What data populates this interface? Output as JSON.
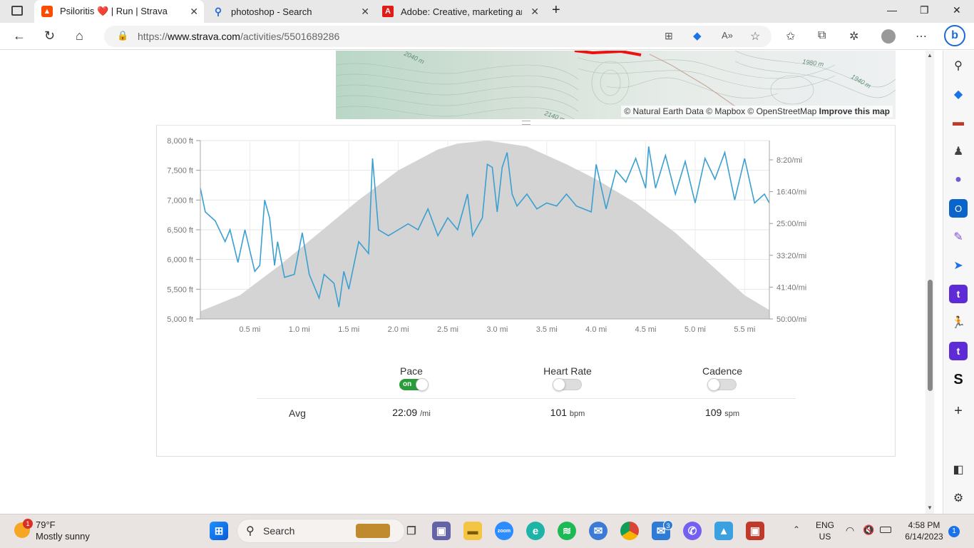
{
  "browser": {
    "tabs": [
      {
        "title": "Psiloritis ❤️ | Run | Strava",
        "active": true,
        "icon": "strava-icon"
      },
      {
        "title": "photoshop - Search",
        "active": false,
        "icon": "search-icon"
      },
      {
        "title": "Adobe: Creative, marketing and d",
        "active": false,
        "icon": "adobe-icon"
      }
    ],
    "url_prefix": "https://",
    "url_host": "www.strava.com",
    "url_path": "/activities/5501689286"
  },
  "map": {
    "attribution_prefix": "© Natural Earth Data © Mapbox © OpenStreetMap",
    "improve_link": "Improve this map",
    "contour_labels": [
      "2140 m",
      "1980 m",
      "1940 m",
      "2040 m"
    ]
  },
  "chart_data": {
    "type": "line",
    "x": {
      "label": "",
      "ticks": [
        "0.5 mi",
        "1.0 mi",
        "1.5 mi",
        "2.0 mi",
        "2.5 mi",
        "3.0 mi",
        "3.5 mi",
        "4.0 mi",
        "4.5 mi",
        "5.0 mi",
        "5.5 mi"
      ],
      "range": [
        0,
        5.75
      ]
    },
    "y_left": {
      "label": "",
      "ticks": [
        "8,000 ft",
        "7,500 ft",
        "7,000 ft",
        "6,500 ft",
        "6,000 ft",
        "5,500 ft",
        "5,000 ft"
      ],
      "range": [
        5000,
        8000
      ]
    },
    "y_right": {
      "label": "",
      "ticks": [
        "8:20/mi",
        "16:40/mi",
        "25:00/mi",
        "33:20/mi",
        "41:40/mi",
        "50:00/mi"
      ]
    },
    "series": [
      {
        "kind": "elevation-area",
        "color": "#d4d4d4",
        "points": [
          [
            0,
            5130
          ],
          [
            0.4,
            5400
          ],
          [
            0.8,
            5900
          ],
          [
            1.2,
            6450
          ],
          [
            1.6,
            7000
          ],
          [
            2.0,
            7500
          ],
          [
            2.4,
            7850
          ],
          [
            2.6,
            7950
          ],
          [
            2.9,
            8000
          ],
          [
            3.3,
            7900
          ],
          [
            3.7,
            7600
          ],
          [
            4.0,
            7350
          ],
          [
            4.4,
            6950
          ],
          [
            4.8,
            6450
          ],
          [
            5.0,
            6150
          ],
          [
            5.3,
            5700
          ],
          [
            5.5,
            5400
          ],
          [
            5.75,
            5150
          ]
        ]
      },
      {
        "kind": "pace-line",
        "color": "#3b9fd1",
        "points": [
          [
            0,
            7200
          ],
          [
            0.05,
            6800
          ],
          [
            0.15,
            6650
          ],
          [
            0.25,
            6300
          ],
          [
            0.3,
            6500
          ],
          [
            0.38,
            5950
          ],
          [
            0.45,
            6500
          ],
          [
            0.55,
            5800
          ],
          [
            0.6,
            5900
          ],
          [
            0.65,
            7000
          ],
          [
            0.7,
            6700
          ],
          [
            0.75,
            5900
          ],
          [
            0.78,
            6300
          ],
          [
            0.85,
            5700
          ],
          [
            0.95,
            5750
          ],
          [
            1.03,
            6450
          ],
          [
            1.1,
            5750
          ],
          [
            1.2,
            5350
          ],
          [
            1.25,
            5750
          ],
          [
            1.35,
            5600
          ],
          [
            1.4,
            5200
          ],
          [
            1.45,
            5800
          ],
          [
            1.5,
            5500
          ],
          [
            1.6,
            6300
          ],
          [
            1.7,
            6100
          ],
          [
            1.74,
            7700
          ],
          [
            1.8,
            6500
          ],
          [
            1.9,
            6400
          ],
          [
            2.0,
            6500
          ],
          [
            2.1,
            6600
          ],
          [
            2.2,
            6500
          ],
          [
            2.3,
            6850
          ],
          [
            2.4,
            6400
          ],
          [
            2.5,
            6700
          ],
          [
            2.6,
            6500
          ],
          [
            2.7,
            7100
          ],
          [
            2.75,
            6400
          ],
          [
            2.85,
            6700
          ],
          [
            2.9,
            7600
          ],
          [
            2.95,
            7550
          ],
          [
            3.0,
            6800
          ],
          [
            3.05,
            7550
          ],
          [
            3.1,
            7800
          ],
          [
            3.15,
            7100
          ],
          [
            3.2,
            6900
          ],
          [
            3.3,
            7100
          ],
          [
            3.4,
            6850
          ],
          [
            3.5,
            6950
          ],
          [
            3.6,
            6900
          ],
          [
            3.7,
            7100
          ],
          [
            3.8,
            6900
          ],
          [
            3.95,
            6800
          ],
          [
            4.0,
            7600
          ],
          [
            4.1,
            6850
          ],
          [
            4.2,
            7500
          ],
          [
            4.3,
            7300
          ],
          [
            4.4,
            7700
          ],
          [
            4.5,
            7200
          ],
          [
            4.53,
            7900
          ],
          [
            4.6,
            7200
          ],
          [
            4.7,
            7750
          ],
          [
            4.8,
            7100
          ],
          [
            4.9,
            7650
          ],
          [
            5.0,
            6950
          ],
          [
            5.1,
            7700
          ],
          [
            5.2,
            7350
          ],
          [
            5.3,
            7800
          ],
          [
            5.4,
            7000
          ],
          [
            5.5,
            7700
          ],
          [
            5.6,
            6950
          ],
          [
            5.7,
            7100
          ],
          [
            5.75,
            6950
          ]
        ]
      }
    ],
    "grid": true,
    "legend": "none"
  },
  "toggles": [
    {
      "label": "Pace",
      "state": "on",
      "on_text": "on"
    },
    {
      "label": "Heart Rate",
      "state": "off"
    },
    {
      "label": "Cadence",
      "state": "off"
    }
  ],
  "averages": {
    "label": "Avg",
    "pace": {
      "value": "22:09",
      "unit": "/mi"
    },
    "heart_rate": {
      "value": "101",
      "unit": "bpm"
    },
    "cadence": {
      "value": "109",
      "unit": "spm"
    }
  },
  "taskbar": {
    "weather_temp": "79°F",
    "weather_desc": "Mostly sunny",
    "weather_badge": "1",
    "search_label": "Search",
    "lang_1": "ENG",
    "lang_2": "US",
    "time": "4:58 PM",
    "date": "6/14/2023",
    "notif_count": "1",
    "mail_badge": "3"
  }
}
